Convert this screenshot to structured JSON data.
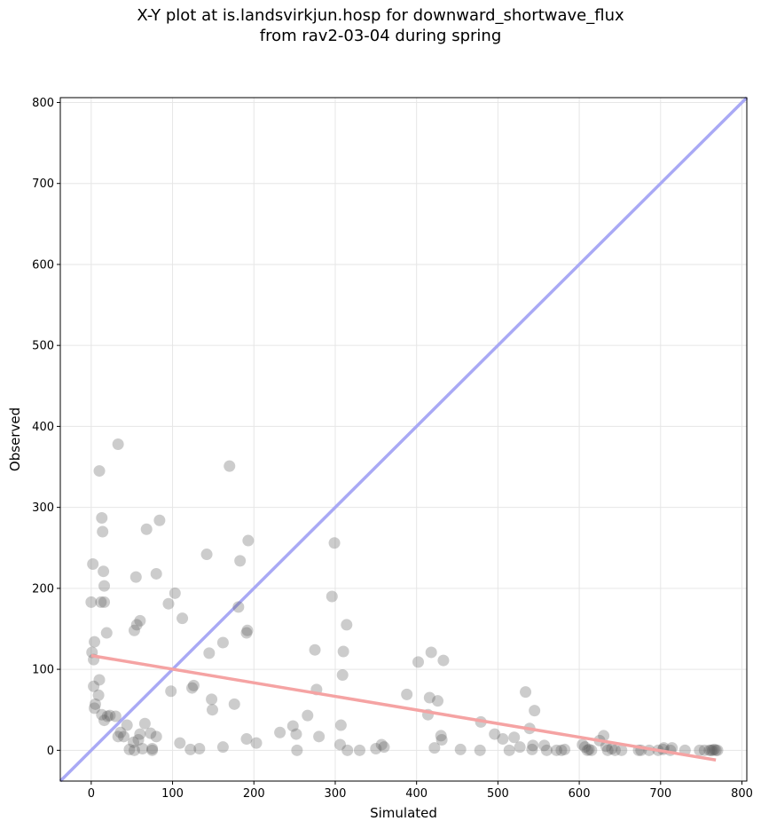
{
  "title_line1": "X-Y plot at is.landsvirkjun.hosp for downward_shortwave_flux",
  "title_line2": "from rav2-03-04 during spring",
  "chart_data": {
    "type": "scatter",
    "xlabel": "Simulated",
    "ylabel": "Observed",
    "xlim": [
      -38,
      806
    ],
    "ylim": [
      -38,
      806
    ],
    "xticks": [
      0,
      100,
      200,
      300,
      400,
      500,
      600,
      700,
      800
    ],
    "yticks": [
      0,
      100,
      200,
      300,
      400,
      500,
      600,
      700,
      800
    ],
    "grid": true,
    "colors": {
      "points": "#555555",
      "identity_line": "#a9a9f5",
      "fit_line": "#f5a3a3"
    },
    "identity_line": {
      "x": [
        -38,
        806
      ],
      "y": [
        -38,
        806
      ]
    },
    "fit_line": {
      "x": [
        0,
        768
      ],
      "y": [
        117,
        -12
      ]
    },
    "points": [
      [
        0,
        183
      ],
      [
        1,
        121
      ],
      [
        2,
        230
      ],
      [
        3,
        112
      ],
      [
        4,
        134
      ],
      [
        3,
        79
      ],
      [
        4,
        52
      ],
      [
        5,
        57
      ],
      [
        10,
        87
      ],
      [
        9,
        68
      ],
      [
        10,
        345
      ],
      [
        13,
        287
      ],
      [
        14,
        270
      ],
      [
        15,
        221
      ],
      [
        16,
        203
      ],
      [
        16,
        183
      ],
      [
        12,
        183
      ],
      [
        19,
        145
      ],
      [
        13,
        44
      ],
      [
        16,
        37
      ],
      [
        20,
        42
      ],
      [
        23,
        43
      ],
      [
        30,
        42
      ],
      [
        33,
        378
      ],
      [
        33,
        17
      ],
      [
        36,
        22
      ],
      [
        40,
        17
      ],
      [
        44,
        31
      ],
      [
        47,
        1
      ],
      [
        53,
        0
      ],
      [
        52,
        10
      ],
      [
        55,
        214
      ],
      [
        56,
        155
      ],
      [
        53,
        148
      ],
      [
        60,
        160
      ],
      [
        60,
        20
      ],
      [
        58,
        13
      ],
      [
        63,
        2
      ],
      [
        66,
        33
      ],
      [
        68,
        273
      ],
      [
        73,
        21
      ],
      [
        75,
        2
      ],
      [
        75,
        0
      ],
      [
        80,
        17
      ],
      [
        80,
        218
      ],
      [
        84,
        284
      ],
      [
        95,
        181
      ],
      [
        98,
        73
      ],
      [
        103,
        194
      ],
      [
        109,
        9
      ],
      [
        112,
        163
      ],
      [
        122,
        1
      ],
      [
        124,
        77
      ],
      [
        126,
        80
      ],
      [
        133,
        2
      ],
      [
        142,
        242
      ],
      [
        145,
        120
      ],
      [
        148,
        63
      ],
      [
        149,
        50
      ],
      [
        162,
        4
      ],
      [
        162,
        133
      ],
      [
        170,
        351
      ],
      [
        176,
        57
      ],
      [
        181,
        177
      ],
      [
        183,
        234
      ],
      [
        191,
        145
      ],
      [
        192,
        148
      ],
      [
        193,
        259
      ],
      [
        191,
        14
      ],
      [
        203,
        9
      ],
      [
        232,
        22
      ],
      [
        248,
        30
      ],
      [
        252,
        20
      ],
      [
        253,
        0
      ],
      [
        266,
        43
      ],
      [
        275,
        124
      ],
      [
        277,
        75
      ],
      [
        280,
        17
      ],
      [
        296,
        190
      ],
      [
        299,
        256
      ],
      [
        306,
        7
      ],
      [
        307,
        31
      ],
      [
        309,
        93
      ],
      [
        310,
        122
      ],
      [
        314,
        155
      ],
      [
        315,
        0
      ],
      [
        330,
        0
      ],
      [
        350,
        2
      ],
      [
        357,
        7
      ],
      [
        360,
        4
      ],
      [
        388,
        69
      ],
      [
        402,
        109
      ],
      [
        414,
        44
      ],
      [
        416,
        65
      ],
      [
        418,
        121
      ],
      [
        422,
        3
      ],
      [
        426,
        61
      ],
      [
        430,
        18
      ],
      [
        431,
        13
      ],
      [
        433,
        111
      ],
      [
        454,
        1
      ],
      [
        478,
        0
      ],
      [
        479,
        35
      ],
      [
        496,
        20
      ],
      [
        506,
        14
      ],
      [
        514,
        0
      ],
      [
        520,
        16
      ],
      [
        527,
        4
      ],
      [
        534,
        72
      ],
      [
        539,
        27
      ],
      [
        542,
        1
      ],
      [
        543,
        6
      ],
      [
        545,
        49
      ],
      [
        557,
        6
      ],
      [
        560,
        0
      ],
      [
        572,
        0
      ],
      [
        578,
        0
      ],
      [
        582,
        1
      ],
      [
        604,
        7
      ],
      [
        607,
        4
      ],
      [
        610,
        0
      ],
      [
        612,
        1
      ],
      [
        615,
        0
      ],
      [
        625,
        12
      ],
      [
        630,
        18
      ],
      [
        633,
        5
      ],
      [
        635,
        0
      ],
      [
        640,
        2
      ],
      [
        644,
        0
      ],
      [
        652,
        0
      ],
      [
        673,
        0
      ],
      [
        676,
        0
      ],
      [
        686,
        0
      ],
      [
        697,
        0
      ],
      [
        703,
        1
      ],
      [
        704,
        3
      ],
      [
        712,
        0
      ],
      [
        714,
        3
      ],
      [
        730,
        0
      ],
      [
        748,
        0
      ],
      [
        754,
        0
      ],
      [
        760,
        0
      ],
      [
        764,
        0
      ],
      [
        766,
        1
      ],
      [
        768,
        0
      ],
      [
        762,
        0
      ],
      [
        770,
        0
      ]
    ]
  }
}
